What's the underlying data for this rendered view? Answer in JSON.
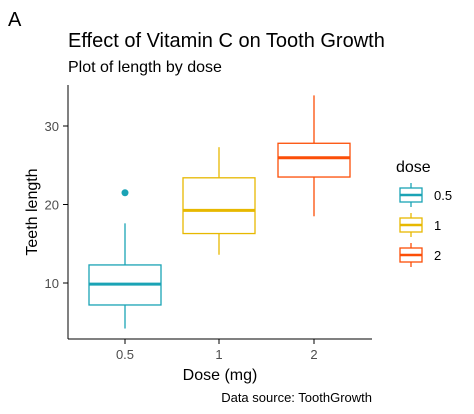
{
  "panel_tag": "A",
  "chart_data": {
    "type": "box",
    "title": "Effect of Vitamin C on Tooth Growth",
    "subtitle": "Plot of length by dose",
    "xlabel": "Dose (mg)",
    "ylabel": "Teeth length",
    "caption": "Data source: ToothGrowth",
    "ylim": [
      2,
      35
    ],
    "yticks": [
      10,
      20,
      30
    ],
    "categories": [
      "0.5",
      "1",
      "2"
    ],
    "series": [
      {
        "name": "0.5",
        "color": "#1aa3b5",
        "min": 4.2,
        "q1": 7.2,
        "median": 9.85,
        "q3": 12.3,
        "max": 17.6,
        "outliers": [
          21.5
        ]
      },
      {
        "name": "1",
        "color": "#e7b800",
        "min": 13.6,
        "q1": 16.3,
        "median": 19.25,
        "q3": 23.4,
        "max": 27.3,
        "outliers": []
      },
      {
        "name": "2",
        "color": "#fc4e07",
        "min": 18.5,
        "q1": 23.5,
        "median": 25.95,
        "q3": 27.8,
        "max": 33.9,
        "outliers": []
      }
    ],
    "legend": {
      "title": "dose",
      "position": "right"
    },
    "grid": false
  }
}
